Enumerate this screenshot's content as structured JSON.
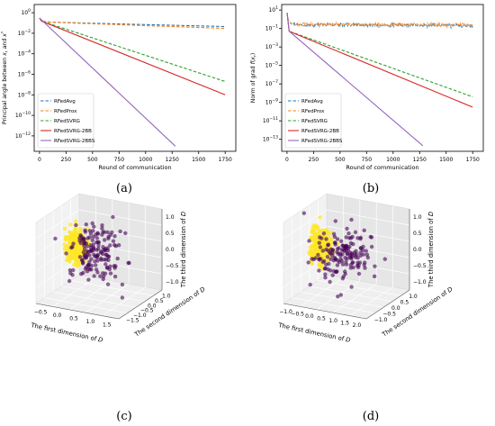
{
  "chart_data": [
    {
      "panel": "(a)",
      "type": "line",
      "title": "",
      "xlabel": "Round of communication",
      "ylabel": "Principal angle between x_r and x*",
      "ylabel_parts": {
        "a": "Principal angle between ",
        "b": "x",
        "c": "r",
        "d": " and ",
        "e": "x",
        "f": "*"
      },
      "yscale": "log",
      "xlim": [
        -50,
        1850
      ],
      "ylim_exp": [
        -13.5,
        0.8
      ],
      "xticks": [
        "0",
        "250",
        "500",
        "750",
        "1000",
        "1250",
        "1500",
        "1750"
      ],
      "xtick_values": [
        0,
        250,
        500,
        750,
        1000,
        1250,
        1500,
        1750
      ],
      "ytick_exponents": [
        0,
        -2,
        -4,
        -6,
        -8,
        -10,
        -12
      ],
      "ytick_labels": [
        "10",
        "10",
        "10",
        "10",
        "10",
        "10",
        "10"
      ],
      "ytick_sups": [
        "0",
        "−2",
        "−4",
        "−6",
        "−8",
        "−10",
        "−12"
      ],
      "grid": false,
      "legend_placement": "lower-left",
      "series": [
        {
          "name": "RFedAvg",
          "color": "#1f77b4",
          "dash": "dashed",
          "points": [
            [
              1,
              0.3
            ],
            [
              20,
              0.15
            ],
            [
              100,
              0.12
            ],
            [
              1000,
              0.07
            ],
            [
              1750,
              0.045
            ]
          ]
        },
        {
          "name": "RFedProx",
          "color": "#ff7f0e",
          "dash": "dashed",
          "points": [
            [
              1,
              0.3
            ],
            [
              20,
              0.15
            ],
            [
              100,
              0.12
            ],
            [
              1000,
              0.055
            ],
            [
              1750,
              0.03
            ]
          ]
        },
        {
          "name": "RFedSVRG",
          "color": "#2ca02c",
          "dash": "dashed",
          "points": [
            [
              1,
              0.3
            ],
            [
              20,
              0.15
            ],
            [
              1750,
              2e-07
            ]
          ]
        },
        {
          "name": "RFedSVRG-2BB",
          "color": "#d62728",
          "dash": "solid",
          "points": [
            [
              1,
              0.3
            ],
            [
              20,
              0.15
            ],
            [
              1750,
              1e-08
            ]
          ]
        },
        {
          "name": "RFedSVRG-2BBS",
          "color": "#9467bd",
          "dash": "solid",
          "points": [
            [
              1,
              0.3
            ],
            [
              1280,
              1e-13
            ]
          ]
        }
      ]
    },
    {
      "panel": "(b)",
      "type": "line",
      "title": "",
      "xlabel": "Round of communication",
      "ylabel": "Norm of grad f(x_r)",
      "ylabel_parts": {
        "a": "Norm of grad ",
        "b": "f",
        "c": "(",
        "d": "x",
        "e": "r",
        "f": ")"
      },
      "yscale": "log",
      "xlim": [
        -50,
        1850
      ],
      "ylim_exp": [
        -14.3,
        1.6
      ],
      "xticks": [
        "0",
        "250",
        "500",
        "750",
        "1000",
        "1250",
        "1500",
        "1750"
      ],
      "xtick_values": [
        0,
        250,
        500,
        750,
        1000,
        1250,
        1500,
        1750
      ],
      "ytick_exponents": [
        1,
        -1,
        -3,
        -5,
        -7,
        -9,
        -11,
        -13
      ],
      "ytick_labels": [
        "10",
        "10",
        "10",
        "10",
        "10",
        "10",
        "10",
        "10"
      ],
      "ytick_sups": [
        "1",
        "−1",
        "−3",
        "−5",
        "−7",
        "−9",
        "−11",
        "−13"
      ],
      "grid": false,
      "legend_placement": "lower-left",
      "series": [
        {
          "name": "RFedAvg",
          "color": "#1f77b4",
          "dash": "dashed",
          "noisy": true,
          "points": [
            [
              1,
              5
            ],
            [
              10,
              1
            ],
            [
              40,
              0.3
            ],
            [
              100,
              0.25
            ],
            [
              1750,
              0.22
            ]
          ]
        },
        {
          "name": "RFedProx",
          "color": "#ff7f0e",
          "dash": "dashed",
          "noisy": true,
          "points": [
            [
              1,
              5
            ],
            [
              10,
              1
            ],
            [
              40,
              0.35
            ],
            [
              100,
              0.28
            ],
            [
              1750,
              0.25
            ]
          ]
        },
        {
          "name": "RFedSVRG",
          "color": "#2ca02c",
          "dash": "dashed",
          "points": [
            [
              1,
              5
            ],
            [
              20,
              0.05
            ],
            [
              1750,
              4e-09
            ]
          ]
        },
        {
          "name": "RFedSVRG-2BB",
          "color": "#d62728",
          "dash": "solid",
          "points": [
            [
              1,
              5
            ],
            [
              20,
              0.05
            ],
            [
              1750,
              3e-10
            ]
          ]
        },
        {
          "name": "RFedSVRG-2BBS",
          "color": "#9467bd",
          "dash": "solid",
          "points": [
            [
              1,
              5
            ],
            [
              20,
              0.05
            ],
            [
              1280,
              2e-14
            ]
          ]
        }
      ]
    },
    {
      "panel": "(c)",
      "type": "scatter",
      "title": "",
      "xlabel": "The first dimension of D",
      "ylabel": "The second dimension of D",
      "zlabel": "The third dimension of D",
      "xticks": [
        "−0.5",
        "0.0",
        "0.5",
        "1.0",
        "1.5"
      ],
      "yticks": [
        "−1.5",
        "−1.0",
        "−0.5",
        "0.0",
        "0.5",
        "1.0"
      ],
      "zticks": [
        "1.0",
        "0.5",
        "0.0",
        "−0.5",
        "−1.0"
      ],
      "grid": true,
      "clusters": [
        {
          "color": "#fde725",
          "count": 220,
          "center": [
            -0.6,
            0.3,
            0.0
          ],
          "spread": [
            0.18,
            0.12,
            0.25
          ]
        },
        {
          "color": "#440154",
          "count": 160,
          "center": [
            0.5,
            -0.3,
            0.1
          ],
          "spread": [
            0.45,
            0.45,
            0.4
          ]
        }
      ]
    },
    {
      "panel": "(d)",
      "type": "scatter",
      "title": "",
      "xlabel": "The first dimension of D",
      "ylabel": "The second dimension of D",
      "zlabel": "The third dimension of D",
      "xticks": [
        "−1.0",
        "−0.5",
        "0.0",
        "0.5",
        "1.0",
        "1.5",
        "2.0"
      ],
      "yticks": [
        "−1.0",
        "−0.5",
        "0.0",
        "0.5",
        "1.0"
      ],
      "zticks": [
        "1.0",
        "0.5",
        "0.0",
        "−0.5",
        "−1.0"
      ],
      "grid": true,
      "clusters": [
        {
          "color": "#fde725",
          "count": 220,
          "center": [
            -0.7,
            0.3,
            0.0
          ],
          "spread": [
            0.2,
            0.12,
            0.25
          ]
        },
        {
          "color": "#440154",
          "count": 160,
          "center": [
            0.4,
            -0.3,
            0.1
          ],
          "spread": [
            0.45,
            0.45,
            0.4
          ]
        }
      ]
    }
  ]
}
